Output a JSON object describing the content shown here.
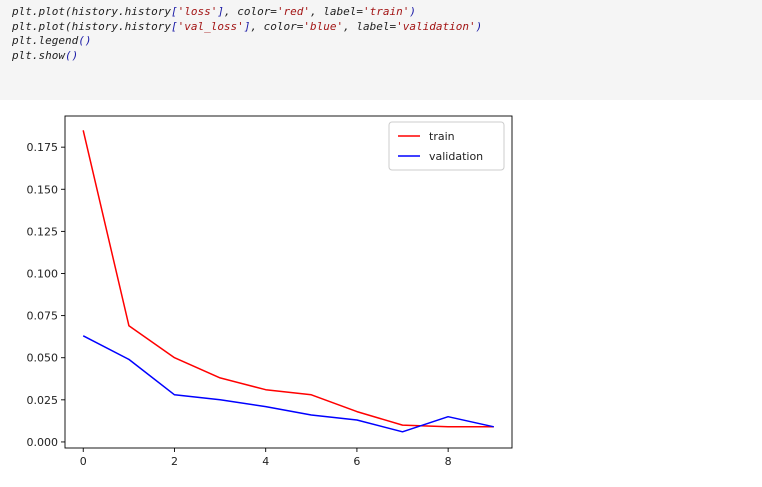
{
  "code": {
    "lines": [
      [
        {
          "t": "plt.plot(history.history"
        },
        {
          "t": "[",
          "c": "br"
        },
        {
          "t": "'loss'",
          "c": "str"
        },
        {
          "t": "]",
          "c": "br"
        },
        {
          "t": ", color="
        },
        {
          "t": "'red'",
          "c": "str"
        },
        {
          "t": ", label="
        },
        {
          "t": "'train'",
          "c": "str"
        },
        {
          "t": ")",
          "c": "br"
        }
      ],
      [
        {
          "t": "plt.plot(history.history"
        },
        {
          "t": "[",
          "c": "br"
        },
        {
          "t": "'val_loss'",
          "c": "str"
        },
        {
          "t": "]",
          "c": "br"
        },
        {
          "t": ", color="
        },
        {
          "t": "'blue'",
          "c": "str"
        },
        {
          "t": ", label="
        },
        {
          "t": "'validation'",
          "c": "str"
        },
        {
          "t": ")",
          "c": "br"
        }
      ],
      [
        {
          "t": "plt.legend"
        },
        {
          "t": "()",
          "c": "br"
        }
      ],
      [
        {
          "t": "plt.show"
        },
        {
          "t": "()",
          "c": "br"
        }
      ]
    ]
  },
  "chart_data": {
    "type": "line",
    "x": [
      0,
      1,
      2,
      3,
      4,
      5,
      6,
      7,
      8,
      9
    ],
    "series": [
      {
        "name": "train",
        "color": "#ff0000",
        "values": [
          0.185,
          0.069,
          0.05,
          0.038,
          0.031,
          0.028,
          0.018,
          0.01,
          0.009,
          0.009
        ]
      },
      {
        "name": "validation",
        "color": "#0000ff",
        "values": [
          0.063,
          0.049,
          0.028,
          0.025,
          0.021,
          0.016,
          0.013,
          0.006,
          0.015,
          0.009
        ]
      }
    ],
    "xticks": [
      "0",
      "2",
      "4",
      "6",
      "8"
    ],
    "yticks": [
      "0.000",
      "0.025",
      "0.050",
      "0.075",
      "0.100",
      "0.125",
      "0.150",
      "0.175"
    ],
    "xlim": [
      -0.4,
      9.4
    ],
    "ylim": [
      -0.0036,
      0.1935
    ],
    "title": "",
    "xlabel": "",
    "ylabel": "",
    "grid": false,
    "legend": "upper-right"
  }
}
